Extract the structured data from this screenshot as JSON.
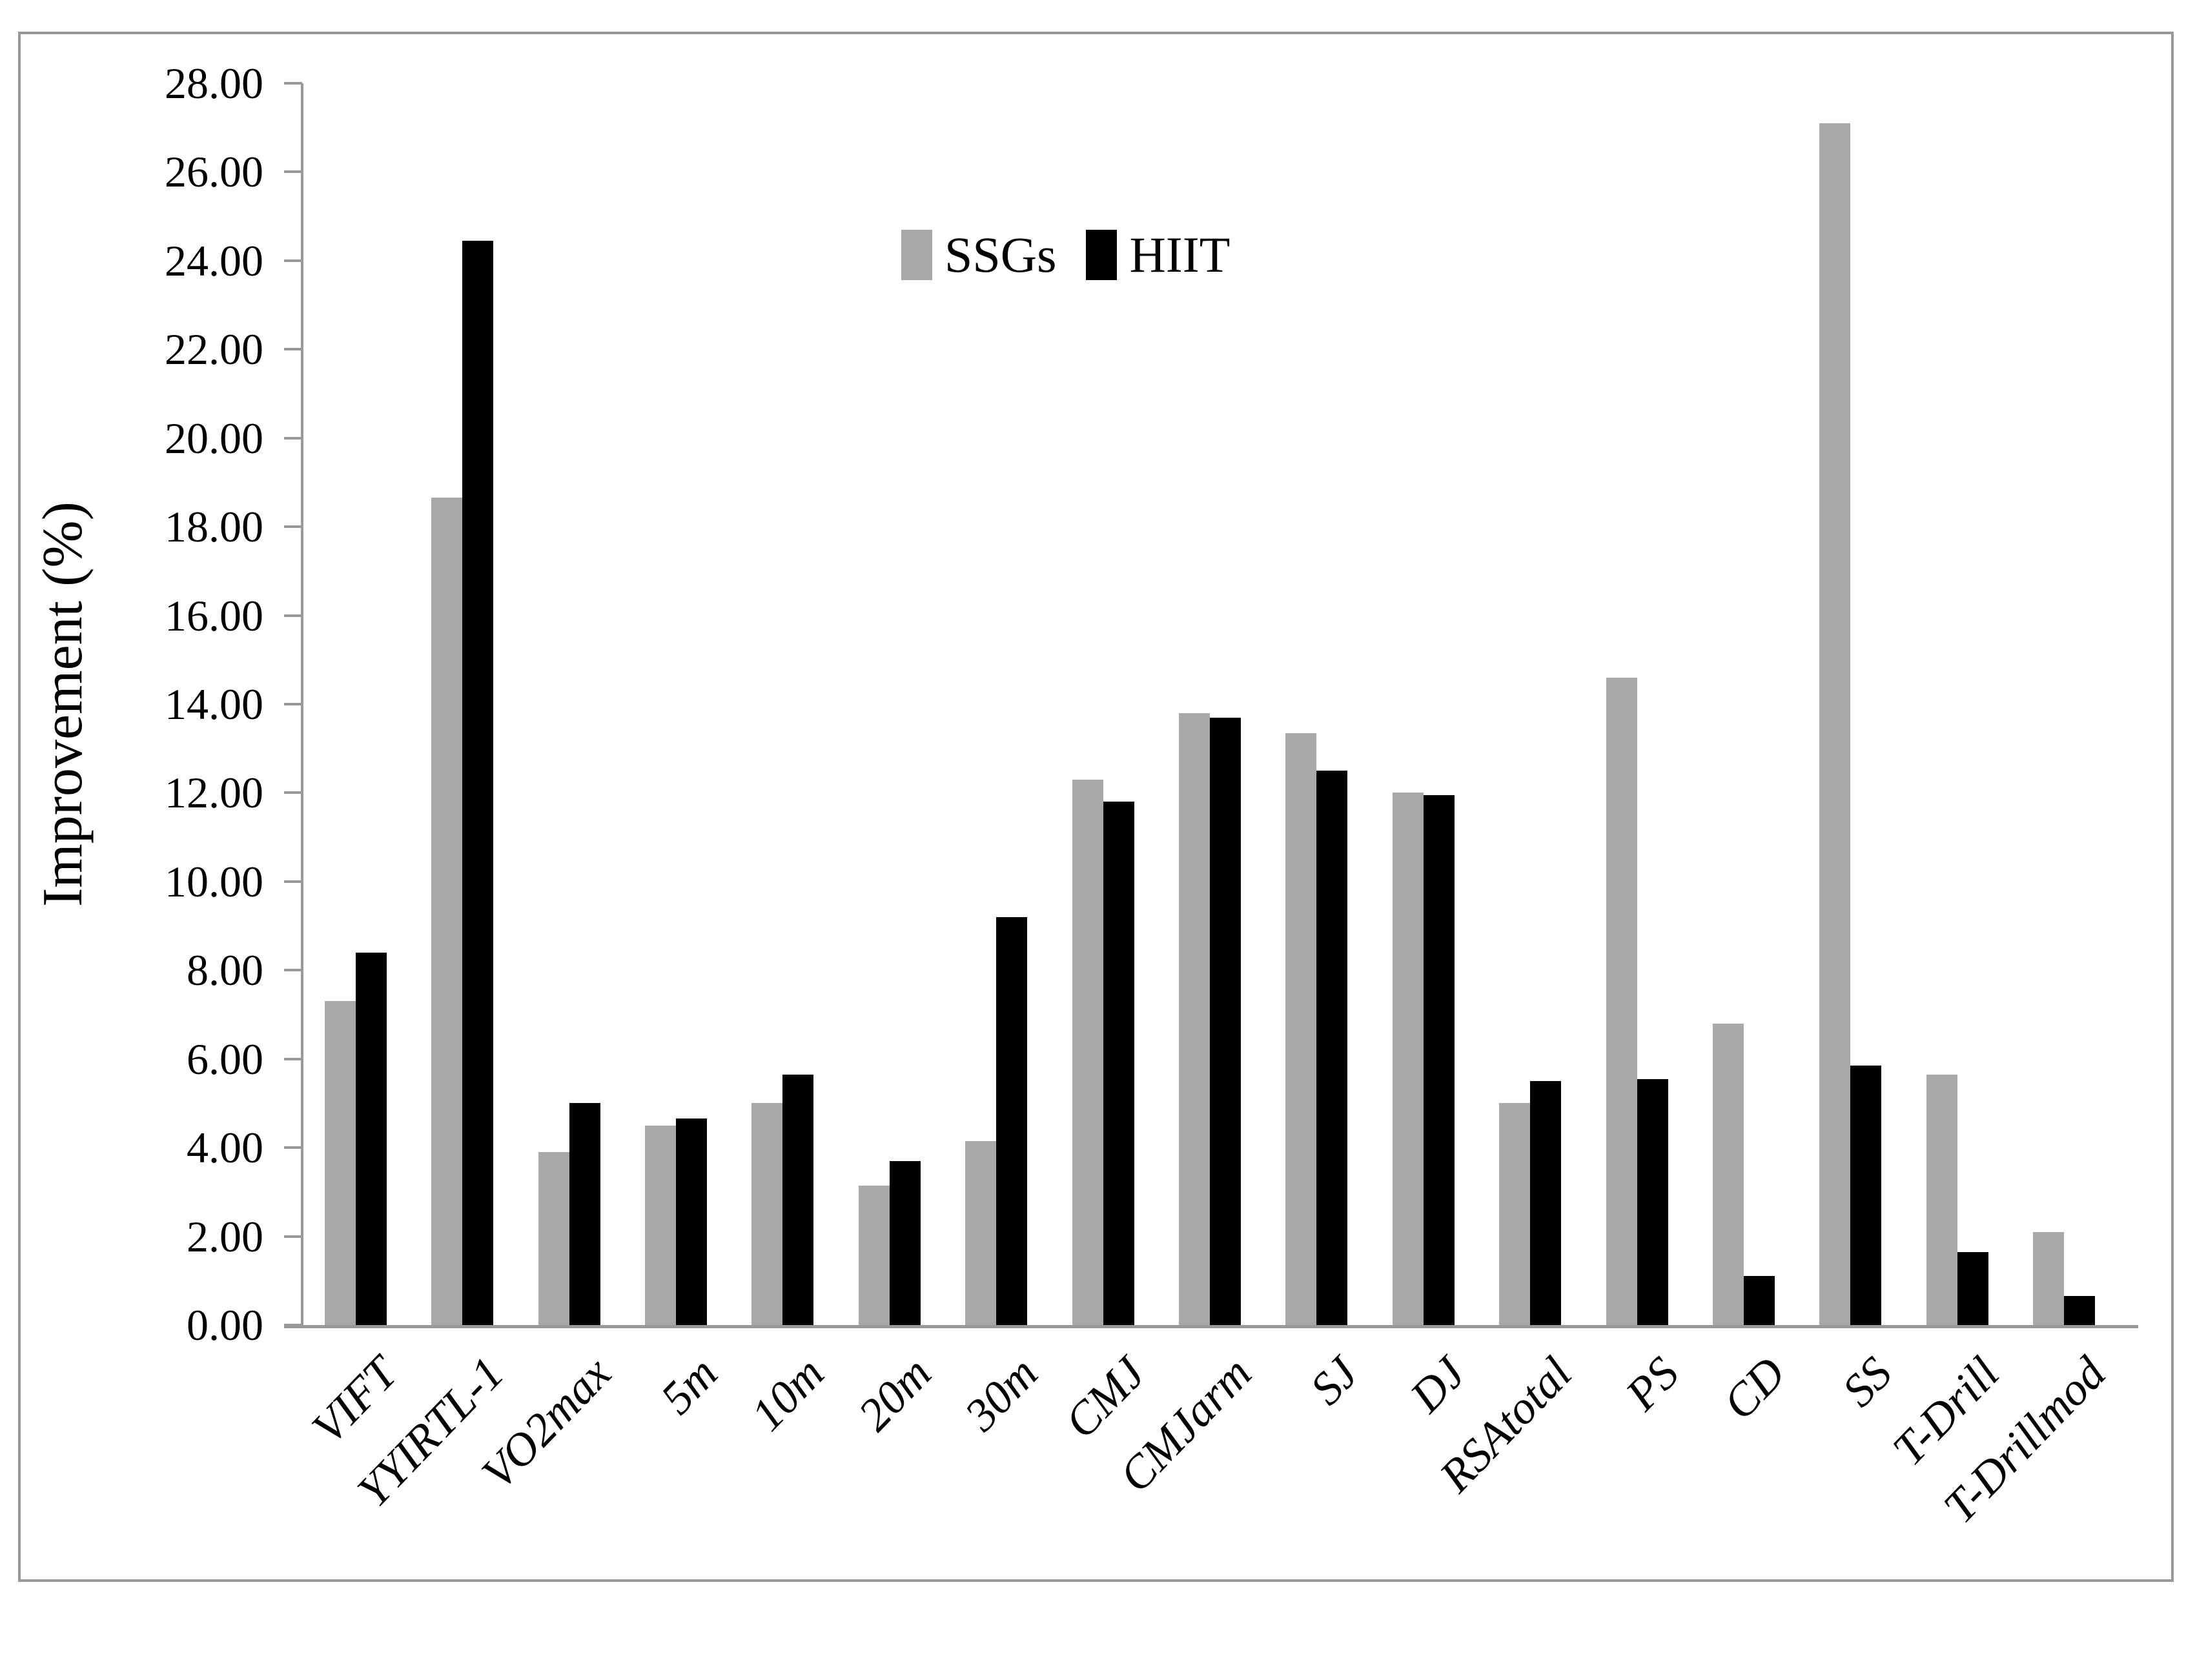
{
  "chart_data": {
    "type": "bar",
    "title": "",
    "xlabel": "",
    "ylabel": "Improvement (%)",
    "ylim": [
      0,
      28
    ],
    "ytick_step": 2,
    "ytick_decimals": 2,
    "grid": false,
    "legend_position": "top-center",
    "categories": [
      "VIFT",
      "YYIRTL-1",
      "VO2max",
      "5m",
      "10m",
      "20m",
      "30m",
      "CMJ",
      "CMJarm",
      "SJ",
      "DJ",
      "RSAtotal",
      "PS",
      "CD",
      "SS",
      "T-Drill",
      "T-Drillmod"
    ],
    "series": [
      {
        "name": "SSGs",
        "color": "#A8A8A8",
        "values": [
          7.3,
          18.65,
          3.9,
          4.5,
          5.0,
          3.15,
          4.15,
          12.3,
          13.8,
          13.35,
          12.0,
          5.0,
          14.6,
          6.8,
          27.1,
          5.65,
          2.1
        ]
      },
      {
        "name": "HIIT",
        "color": "#000000",
        "values": [
          8.4,
          24.45,
          5.0,
          4.65,
          5.65,
          3.7,
          9.2,
          11.8,
          13.7,
          12.5,
          11.95,
          5.5,
          5.55,
          1.1,
          5.85,
          1.65,
          0.65
        ]
      }
    ]
  },
  "legend": {
    "ssgs_label": "SSGs",
    "hiit_label": "HIIT"
  },
  "axes": {
    "y_title": "Improvement (%)"
  },
  "colors": {
    "bar_gray": "#A8A8A8",
    "bar_black": "#000000",
    "axis": "#999999",
    "border": "#999999",
    "background": "#FFFFFF"
  }
}
